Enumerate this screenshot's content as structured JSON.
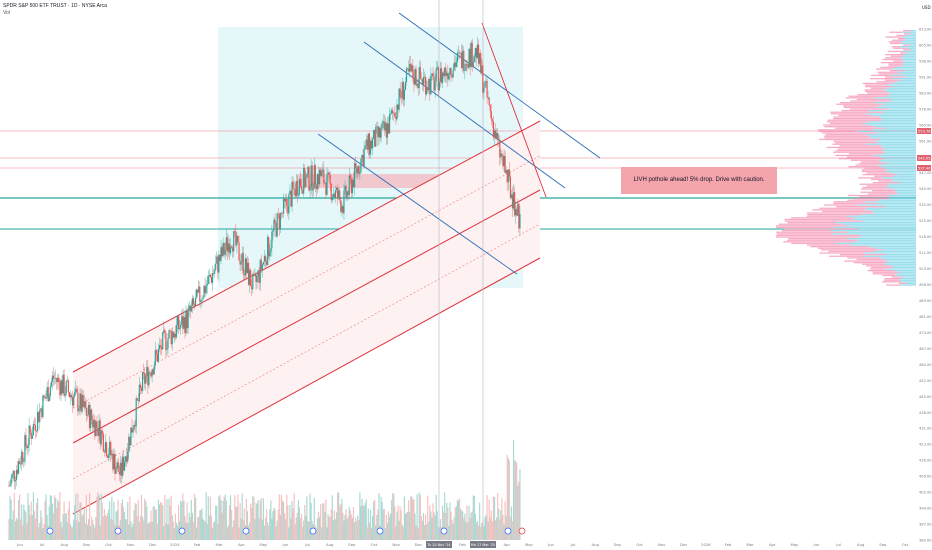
{
  "header": {
    "symbol_line": "SPDR S&P 500 ETF TRUST · 1D · NYSE Arca",
    "sub_line": "Vol"
  },
  "annotation": {
    "text": "LIVH pothole ahead! 5% drop. Drive with caution."
  },
  "price_axis": {
    "currency": "USD",
    "ticks": [
      "613.00",
      "605.00",
      "598.00",
      "591.00",
      "583.00",
      "576.00",
      "569.00",
      "561.00",
      "554.00",
      "547.00",
      "540.00",
      "532.00",
      "525.00",
      "518.00",
      "511.00",
      "503.00",
      "496.00",
      "489.00",
      "481.00",
      "474.00",
      "467.00",
      "460.00",
      "452.00",
      "445.00",
      "438.00",
      "431.00",
      "423.00",
      "416.00",
      "409.00",
      "402.00",
      "394.00",
      "387.00",
      "380.00"
    ],
    "price_labels": [
      {
        "value": "553.76",
        "color": "#e0626f"
      },
      {
        "value": "542.05",
        "color": "#e0626f"
      },
      {
        "value": "537.40",
        "color": "#e0626f"
      }
    ]
  },
  "time_axis": {
    "ticks": [
      "Jun",
      "Jul",
      "Aug",
      "Sep",
      "Oct",
      "Nov",
      "Dec",
      "2024",
      "Feb",
      "Mar",
      "Apr",
      "May",
      "Jun",
      "Jul",
      "Aug",
      "Sep",
      "Oct",
      "Nov",
      "Dec",
      "2025",
      "Feb",
      "Mar",
      "Apr",
      "May",
      "Jun",
      "Jul",
      "Aug",
      "Sep",
      "Oct",
      "Nov",
      "Dec",
      "2026",
      "Feb",
      "Mar",
      "Apr",
      "May",
      "Jun",
      "Jul",
      "Aug",
      "Sep",
      "Oct"
    ],
    "highlight_labels": [
      "Tu 20 Nov '24",
      "Mo 17 Mar '25"
    ]
  },
  "chart_data": {
    "type": "candlestick",
    "title": "SPDR S&P 500 ETF TRUST · 1D · NYSE Arca",
    "ylabel": "USD",
    "ylim": [
      380,
      616
    ],
    "x_range": [
      "2023-05-15",
      "2026-11-01"
    ],
    "series": [
      {
        "x": [
          "2023-05",
          "2023-06",
          "2023-07",
          "2023-08",
          "2023-09",
          "2023-10",
          "2023-11",
          "2023-12",
          "2024-01",
          "2024-02",
          "2024-03",
          "2024-04",
          "2024-05",
          "2024-06",
          "2024-07",
          "2024-08",
          "2024-09",
          "2024-10",
          "2024-11",
          "2024-12",
          "2025-01",
          "2025-02",
          "2025-03",
          "2025-04"
        ],
        "values": [
          405,
          430,
          455,
          445,
          432,
          410,
          452,
          472,
          482,
          500,
          520,
          496,
          525,
          545,
          548,
          535,
          560,
          570,
          595,
          590,
          600,
          605,
          560,
          525
        ]
      }
    ],
    "overlays": {
      "ascending_channel": "red parallel lines",
      "descending_channels": "blue parallel lines",
      "horizontal_levels": "red and green lines"
    },
    "volume_profile": "visible range, right side",
    "grid": false,
    "colors": {
      "up": "#26a69a",
      "down": "#ef5350",
      "channel": "#e0313c",
      "trend": "#2962ff",
      "level": "#26a69a"
    }
  }
}
